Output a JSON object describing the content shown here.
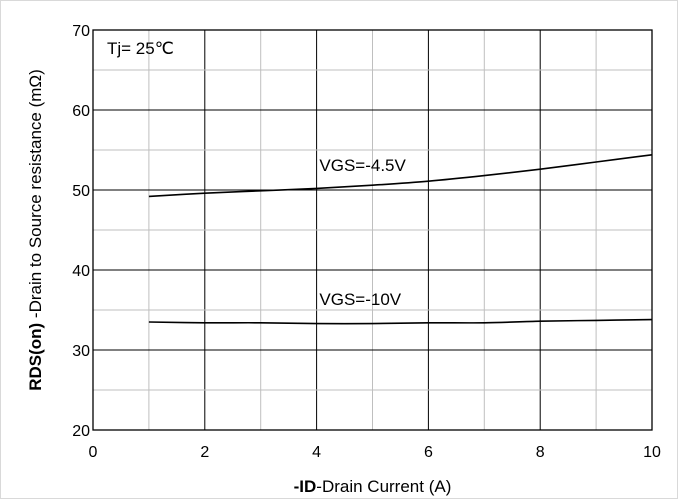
{
  "chart_data": {
    "type": "line",
    "xlabel_bold": "-ID",
    "xlabel_rest": "-Drain  Current  (A)",
    "ylabel_bold": "RDS(on)",
    "ylabel_rest": " -Drain to Source resistance (mΩ)",
    "xlim": [
      0,
      10
    ],
    "ylim": [
      20,
      70
    ],
    "x_major_step": 2,
    "x_minor_step": 1,
    "y_major_step": 10,
    "y_minor_step": 5,
    "grid": true,
    "xticks": [
      "0",
      "2",
      "4",
      "6",
      "8",
      "10"
    ],
    "yticks": [
      "20",
      "30",
      "40",
      "50",
      "60",
      "70"
    ],
    "annotations": {
      "temperature": "Tj=  25℃"
    },
    "series": [
      {
        "name": "VGS=-4.5V",
        "label_x": 4.05,
        "label_y": 52.4,
        "x": [
          1,
          2,
          3,
          4,
          5,
          6,
          7,
          8,
          9,
          10
        ],
        "y": [
          49.2,
          49.6,
          49.9,
          50.2,
          50.6,
          51.1,
          51.8,
          52.6,
          53.5,
          54.4
        ]
      },
      {
        "name": "VGS=-10V",
        "label_x": 4.05,
        "label_y": 35.6,
        "x": [
          1,
          2,
          3,
          4,
          5,
          6,
          7,
          8,
          9,
          10
        ],
        "y": [
          33.5,
          33.4,
          33.4,
          33.3,
          33.3,
          33.4,
          33.4,
          33.6,
          33.7,
          33.8
        ]
      }
    ]
  }
}
